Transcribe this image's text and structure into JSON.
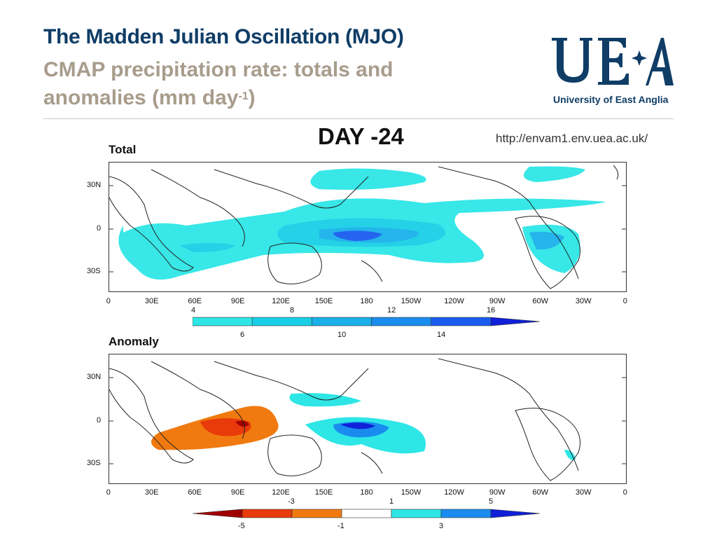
{
  "slide": {
    "title": "The Madden Julian Oscillation (MJO)",
    "subtitle_line1": "CMAP precipitation rate: totals and",
    "subtitle_line2": "anomalies (mm day",
    "subtitle_sup": "-1",
    "subtitle_end": ")",
    "url": "http://envam1.env.uea.ac.uk/",
    "day_label": "DAY -24"
  },
  "logo": {
    "letters": "UEA",
    "text": "University of East Anglia",
    "color": "#0f3d66"
  },
  "panels": {
    "total_label": "Total",
    "anomaly_label": "Anomaly"
  },
  "axes": {
    "lat_labels": [
      "30N",
      "0",
      "30S"
    ],
    "lon_labels": [
      "0",
      "30E",
      "60E",
      "90E",
      "120E",
      "150E",
      "180",
      "150W",
      "120W",
      "90W",
      "60W",
      "30W",
      "0"
    ]
  },
  "colorbar_total": {
    "upper_labels": [
      "4",
      "8",
      "12",
      "16"
    ],
    "lower_labels": [
      "6",
      "10",
      "14"
    ],
    "colors": [
      "#2ee6e6",
      "#19cfe6",
      "#1ab0ea",
      "#1a8cef",
      "#1a5cf0",
      "#1020d8"
    ]
  },
  "colorbar_anomaly": {
    "upper_labels": [
      "-3",
      "1",
      "5"
    ],
    "lower_labels": [
      "-5",
      "-1",
      "3"
    ],
    "colors": [
      "#a00000",
      "#e83a0a",
      "#f07a10",
      "#ffffff",
      "#2ee6e6",
      "#1a8cef",
      "#1020d8"
    ]
  }
}
